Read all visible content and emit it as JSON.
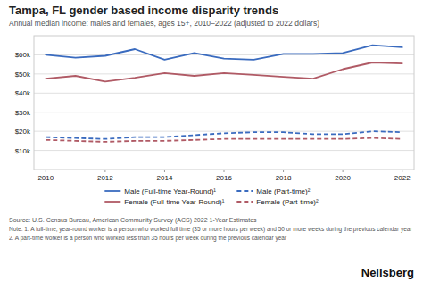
{
  "chart_data": {
    "type": "line",
    "title": "Tampa, FL gender based income disparity trends",
    "subtitle": "Annual median income: males and females, ages 15+, 2010–2022 (adjusted to 2022 dollars)",
    "annotations": [
      "Source: U.S. Census Bureau, American Community Survey (ACS) 2022 1-Year Estimates",
      "Note: 1. A full-time, year-round worker is a person who worked full time (35 or more hours per week) and 50 or more weeks during the previous calendar year",
      "2. A part-time worker is a person who worked less than 35 hours per week during the previous calendar year",
      "Neilsberg"
    ],
    "x": [
      2010,
      2011,
      2012,
      2013,
      2014,
      2015,
      2016,
      2017,
      2018,
      2019,
      2020,
      2021,
      2022
    ],
    "series": [
      {
        "name": "Male (Full-time Year-Round)¹",
        "color": "#3a6bbf",
        "line_style": "solid",
        "values": [
          60000,
          58500,
          59500,
          63000,
          57500,
          61000,
          58000,
          57500,
          60500,
          60500,
          61000,
          65000,
          64000
        ]
      },
      {
        "name": "Male (Part-time)²",
        "color": "#3a6bbf",
        "line_style": "dashed",
        "values": [
          17000,
          16500,
          16000,
          17000,
          17000,
          18000,
          19000,
          19500,
          19500,
          18500,
          18500,
          20000,
          19500
        ]
      },
      {
        "name": "Female (Full-time Year-Round)¹",
        "color": "#b05a65",
        "line_style": "solid",
        "values": [
          47500,
          49000,
          46000,
          48000,
          50500,
          49000,
          50500,
          49500,
          48500,
          47500,
          52500,
          56000,
          55500
        ]
      },
      {
        "name": "Female (Part-time)²",
        "color": "#b05a65",
        "line_style": "dashed",
        "values": [
          15500,
          15000,
          14500,
          15000,
          15000,
          15500,
          16000,
          16000,
          16000,
          16000,
          16000,
          16500,
          16000
        ]
      }
    ],
    "xlim": [
      2009.6,
      2022.4
    ],
    "xticks": [
      2010,
      2012,
      2014,
      2016,
      2018,
      2020,
      2022
    ],
    "ylim": [
      0,
      70000
    ],
    "yticks": [
      {
        "value": 10000,
        "label": "$10k"
      },
      {
        "value": 20000,
        "label": "$20k"
      },
      {
        "value": 30000,
        "label": "$30k"
      },
      {
        "value": 40000,
        "label": "$40k"
      },
      {
        "value": 50000,
        "label": "$50k"
      },
      {
        "value": 60000,
        "label": "$60k"
      }
    ],
    "grid": true,
    "legend": "bottom"
  }
}
